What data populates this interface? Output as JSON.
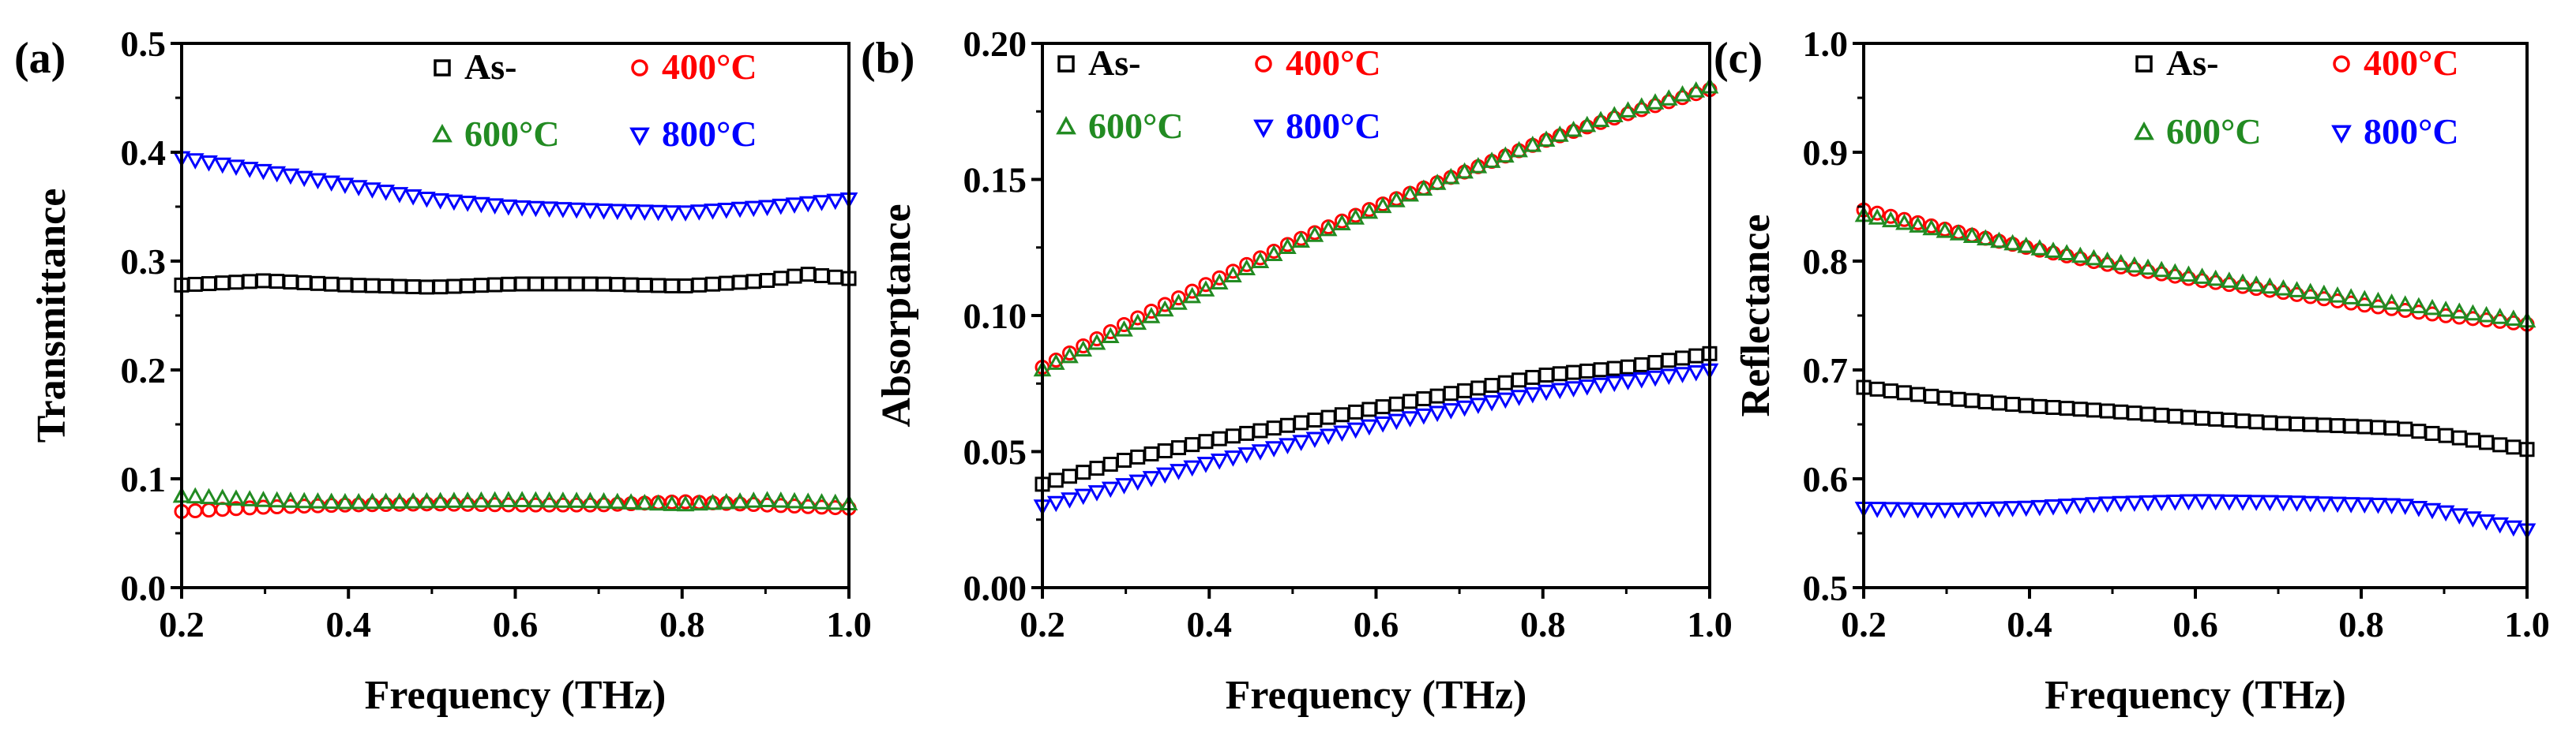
{
  "colors": {
    "As-": "#000000",
    "400°C": "#ff0000",
    "600°C": "#228b22",
    "800°C": "#0000ff"
  },
  "markers": {
    "As-": "square",
    "400°C": "circle",
    "600°C": "triangle-up",
    "800°C": "triangle-down"
  },
  "chart_data": [
    {
      "type": "scatter",
      "panel_label": "(a)",
      "title": "",
      "xlabel": "Frequency (THz)",
      "ylabel": "Transmittance",
      "xlim": [
        0.2,
        1.0
      ],
      "ylim": [
        0.0,
        0.5
      ],
      "xticks": [
        "0.2",
        "0.4",
        "0.6",
        "0.8",
        "1.0"
      ],
      "yticks": [
        "0.0",
        "0.1",
        "0.2",
        "0.3",
        "0.4",
        "0.5"
      ],
      "legend_position": "top-right",
      "series": [
        {
          "name": "As-",
          "x": [
            0.2,
            0.3,
            0.4,
            0.5,
            0.6,
            0.7,
            0.8,
            0.9,
            0.95,
            1.0
          ],
          "y": [
            0.278,
            0.282,
            0.278,
            0.276,
            0.279,
            0.279,
            0.277,
            0.282,
            0.288,
            0.284
          ]
        },
        {
          "name": "400°C",
          "x": [
            0.2,
            0.3,
            0.4,
            0.5,
            0.6,
            0.7,
            0.8,
            0.9,
            1.0
          ],
          "y": [
            0.07,
            0.074,
            0.076,
            0.077,
            0.076,
            0.076,
            0.079,
            0.076,
            0.073
          ]
        },
        {
          "name": "600°C",
          "x": [
            0.2,
            0.3,
            0.4,
            0.5,
            0.6,
            0.7,
            0.8,
            0.9,
            1.0
          ],
          "y": [
            0.084,
            0.08,
            0.078,
            0.079,
            0.08,
            0.079,
            0.076,
            0.08,
            0.077
          ]
        },
        {
          "name": "800°C",
          "x": [
            0.2,
            0.3,
            0.4,
            0.5,
            0.6,
            0.7,
            0.8,
            0.9,
            1.0
          ],
          "y": [
            0.395,
            0.383,
            0.37,
            0.357,
            0.35,
            0.347,
            0.345,
            0.35,
            0.357
          ]
        }
      ]
    },
    {
      "type": "scatter",
      "panel_label": "(b)",
      "title": "",
      "xlabel": "Frequency (THz)",
      "ylabel": "Absorptance",
      "xlim": [
        0.2,
        1.0
      ],
      "ylim": [
        0.0,
        0.2
      ],
      "xticks": [
        "0.2",
        "0.4",
        "0.6",
        "0.8",
        "1.0"
      ],
      "yticks": [
        "0.00",
        "0.05",
        "0.10",
        "0.15",
        "0.20"
      ],
      "legend_position": "top",
      "series": [
        {
          "name": "As-",
          "x": [
            0.2,
            0.3,
            0.4,
            0.5,
            0.6,
            0.7,
            0.8,
            0.9,
            1.0
          ],
          "y": [
            0.038,
            0.047,
            0.054,
            0.06,
            0.066,
            0.072,
            0.078,
            0.081,
            0.086
          ]
        },
        {
          "name": "400°C",
          "x": [
            0.2,
            0.3,
            0.4,
            0.5,
            0.6,
            0.7,
            0.8,
            0.9,
            1.0
          ],
          "y": [
            0.081,
            0.097,
            0.112,
            0.127,
            0.14,
            0.152,
            0.164,
            0.174,
            0.183
          ]
        },
        {
          "name": "600°C",
          "x": [
            0.2,
            0.3,
            0.4,
            0.5,
            0.6,
            0.7,
            0.8,
            0.9,
            1.0
          ],
          "y": [
            0.08,
            0.095,
            0.11,
            0.126,
            0.139,
            0.152,
            0.164,
            0.175,
            0.184
          ]
        },
        {
          "name": "800°C",
          "x": [
            0.2,
            0.3,
            0.4,
            0.5,
            0.6,
            0.7,
            0.8,
            0.9,
            1.0
          ],
          "y": [
            0.03,
            0.038,
            0.046,
            0.053,
            0.06,
            0.066,
            0.072,
            0.076,
            0.08
          ]
        }
      ]
    },
    {
      "type": "scatter",
      "panel_label": "(c)",
      "title": "",
      "xlabel": "Frequency (THz)",
      "ylabel": "Reflectance",
      "xlim": [
        0.2,
        1.0
      ],
      "ylim": [
        0.5,
        1.0
      ],
      "xticks": [
        "0.2",
        "0.4",
        "0.6",
        "0.8",
        "1.0"
      ],
      "yticks": [
        "0.5",
        "0.6",
        "0.7",
        "0.8",
        "0.9",
        "1.0"
      ],
      "legend_position": "top-right",
      "series": [
        {
          "name": "As-",
          "x": [
            0.2,
            0.3,
            0.4,
            0.5,
            0.6,
            0.7,
            0.8,
            0.85,
            0.9,
            1.0
          ],
          "y": [
            0.684,
            0.674,
            0.667,
            0.662,
            0.656,
            0.651,
            0.648,
            0.646,
            0.64,
            0.627
          ]
        },
        {
          "name": "400°C",
          "x": [
            0.2,
            0.3,
            0.4,
            0.5,
            0.6,
            0.7,
            0.8,
            0.9,
            1.0
          ],
          "y": [
            0.847,
            0.829,
            0.812,
            0.796,
            0.783,
            0.772,
            0.76,
            0.75,
            0.742
          ]
        },
        {
          "name": "600°C",
          "x": [
            0.2,
            0.3,
            0.4,
            0.5,
            0.6,
            0.7,
            0.8,
            0.9,
            1.0
          ],
          "y": [
            0.842,
            0.827,
            0.813,
            0.799,
            0.786,
            0.775,
            0.765,
            0.755,
            0.745
          ]
        },
        {
          "name": "800°C",
          "x": [
            0.2,
            0.3,
            0.4,
            0.5,
            0.6,
            0.7,
            0.8,
            0.85,
            0.9,
            1.0
          ],
          "y": [
            0.573,
            0.572,
            0.574,
            0.578,
            0.58,
            0.579,
            0.577,
            0.576,
            0.57,
            0.553
          ]
        }
      ]
    }
  ]
}
